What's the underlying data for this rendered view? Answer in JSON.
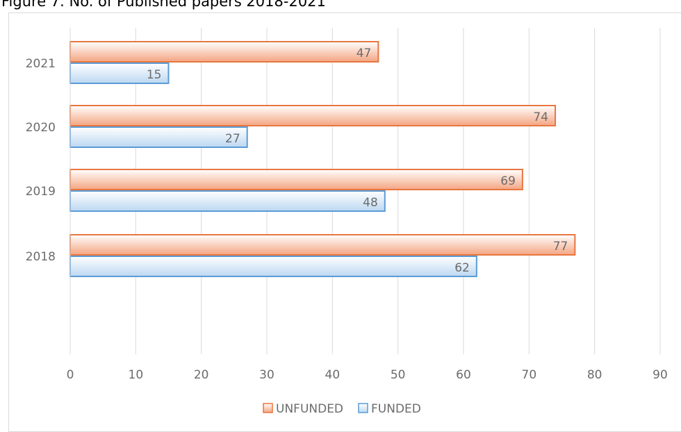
{
  "figure_title": "Figure 7. No. of Published papers 2018-2021",
  "chart_data": {
    "type": "bar",
    "orientation": "horizontal",
    "title": "",
    "categories": [
      "2018",
      "2019",
      "2020",
      "2021"
    ],
    "series": [
      {
        "name": "UNFUNDED",
        "values": [
          77,
          69,
          74,
          47
        ],
        "color": "#f4a582",
        "stroke": "#e8763f"
      },
      {
        "name": "FUNDED",
        "values": [
          62,
          48,
          27,
          15
        ],
        "color": "#bcd8f2",
        "stroke": "#5b9bd5"
      }
    ],
    "xlim": [
      0,
      90
    ],
    "xticks": [
      0,
      10,
      20,
      30,
      40,
      50,
      60,
      70,
      80,
      90
    ],
    "xlabel": "",
    "ylabel": "",
    "grid": "vertical",
    "legend": "bottom",
    "data_labels": true
  }
}
